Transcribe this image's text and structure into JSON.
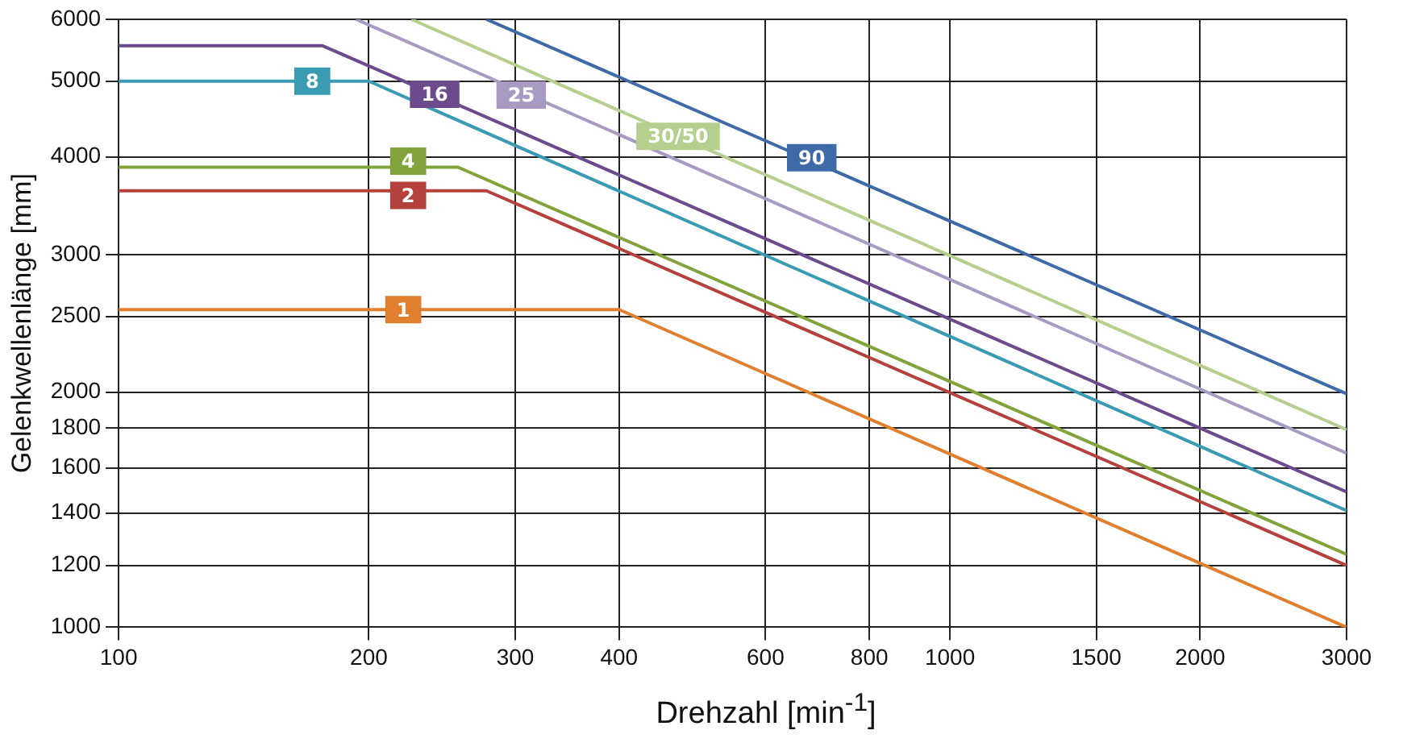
{
  "chart_data": {
    "type": "line",
    "xlabel": "Drehzahl [min$^{-1}$]",
    "ylabel": "Gelenkwellenlänge [mm]",
    "log": "xy",
    "grid": true,
    "marker": "none",
    "line_style": "solid",
    "xlim": [
      100,
      3000
    ],
    "ylim": [
      1000,
      6000
    ],
    "xticks": [
      100,
      200,
      300,
      400,
      600,
      800,
      1000,
      1500,
      2000,
      3000
    ],
    "yticks": [
      1000,
      1200,
      1400,
      1600,
      1800,
      2000,
      2500,
      3000,
      4000,
      5000,
      6000
    ],
    "series": [
      {
        "color": "#e07f2e",
        "x": [
          100,
          400,
          3000
        ],
        "values": [
          2550,
          2550,
          1000
        ]
      },
      {
        "color": "#b5413c",
        "x": [
          100,
          277,
          3000
        ],
        "values": [
          3620,
          3620,
          1200
        ]
      },
      {
        "color": "#80a33c",
        "x": [
          100,
          256,
          3000
        ],
        "values": [
          3880,
          3880,
          1240
        ]
      },
      {
        "color": "#3a9bb3",
        "x": [
          100,
          200,
          3000
        ],
        "values": [
          5000,
          5000,
          1410
        ]
      },
      {
        "color": "#6c4b8c",
        "x": [
          100,
          176,
          3000
        ],
        "values": [
          5550,
          5550,
          1490
        ]
      },
      {
        "color": "#a99ac4",
        "x": [
          193,
          3000
        ],
        "values": [
          6000,
          1670
        ]
      },
      {
        "color": "#b5cf8f",
        "x": [
          225,
          3000
        ],
        "values": [
          6000,
          1790
        ]
      },
      {
        "color": "#3e6aa8",
        "x": [
          277,
          3000
        ],
        "values": [
          6000,
          1990
        ]
      }
    ],
    "annotations": [
      {
        "text": "1",
        "x": 220,
        "y": 2550
      },
      {
        "text": "2",
        "x": 223,
        "y": 3570
      },
      {
        "text": "4",
        "x": 223,
        "y": 3950
      },
      {
        "text": "8",
        "x": 171,
        "y": 5000
      },
      {
        "text": "16",
        "x": 240,
        "y": 4810
      },
      {
        "text": "25",
        "x": 305,
        "y": 4800
      },
      {
        "text": "30/50",
        "x": 471,
        "y": 4250
      },
      {
        "text": "90",
        "x": 682,
        "y": 3990
      }
    ]
  }
}
